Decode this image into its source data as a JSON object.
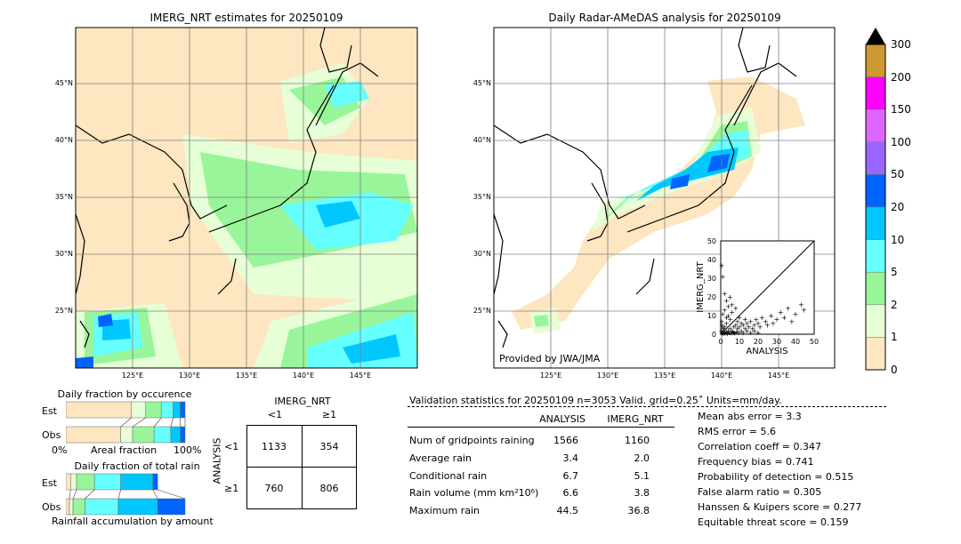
{
  "left_map": {
    "title": "IMERG_NRT estimates for 20250109",
    "lat_labels": [
      "45°N",
      "40°N",
      "35°N",
      "30°N",
      "25°N"
    ],
    "lon_labels": [
      "125°E",
      "130°E",
      "135°E",
      "140°E",
      "145°E"
    ]
  },
  "right_map": {
    "title": "Daily Radar-AMeDAS analysis for 20250109",
    "lat_labels": [
      "45°N",
      "40°N",
      "35°N",
      "30°N",
      "25°N"
    ],
    "lon_labels": [
      "125°E",
      "130°E",
      "135°E",
      "140°E",
      "145°E"
    ],
    "credit": "Provided by JWA/JMA",
    "inset": {
      "ylabel": "IMERG_NRT",
      "xlabel": "ANALYSIS",
      "ticks": [
        "0",
        "10",
        "20",
        "30",
        "40",
        "50"
      ]
    }
  },
  "colorbar": {
    "labels": [
      "300",
      "200",
      "150",
      "100",
      "50",
      "20",
      "10",
      "5",
      "2",
      "1",
      "0"
    ],
    "colors": {
      "c0": "#fde6c0",
      "c1": "#e6ffd6",
      "c2": "#99f59a",
      "c3": "#66ffff",
      "c4": "#00c8ff",
      "c5": "#0064ff",
      "c6": "#9966ff",
      "c7": "#dd66ff",
      "c8": "#ff00ff",
      "c9": "#cc9933",
      "extend": "#000000"
    }
  },
  "occurrence": {
    "title": "Daily fraction by occurence",
    "rows": [
      "Est",
      "Obs"
    ],
    "axis_left": "0%",
    "axis_mid": "Areal fraction",
    "axis_right": "100%"
  },
  "accumulation": {
    "title": "Daily fraction of total rain",
    "rows": [
      "Est",
      "Obs"
    ],
    "footer": "Rainfall accumulation by amount"
  },
  "contingency": {
    "top_label": "IMERG_NRT",
    "col_lt": "<1",
    "col_ge": "≥1",
    "side_label": "ANALYSIS",
    "row_lt": "<1",
    "row_ge": "≥1",
    "a": "1133",
    "b": "354",
    "c": "760",
    "d": "806"
  },
  "stats": {
    "header": "Validation statistics for 20250109  n=3053 Valid. grid=0.25˚ Units=mm/day.",
    "col_analysis": "ANALYSIS",
    "col_imerg": "IMERG_NRT",
    "rows": [
      {
        "label": "Num of gridpoints raining",
        "analysis": "1566",
        "imerg": "1160"
      },
      {
        "label": "Average rain",
        "analysis": "3.4",
        "imerg": "2.0"
      },
      {
        "label": "Conditional rain",
        "analysis": "6.7",
        "imerg": "5.1"
      },
      {
        "label": "Rain volume (mm km²10⁶)",
        "analysis": "6.6",
        "imerg": "3.8"
      },
      {
        "label": "Maximum rain",
        "analysis": "44.5",
        "imerg": "36.8"
      }
    ],
    "scores": [
      "Mean abs error =    3.3",
      "RMS error =    5.6",
      "Correlation coeff =  0.347",
      "Frequency bias =  0.741",
      "Probability of detection =  0.515",
      "False alarm ratio =  0.305",
      "Hanssen & Kuipers score =  0.277",
      "Equitable threat score =  0.159"
    ]
  },
  "chart_data": [
    {
      "type": "heatmap",
      "title": "IMERG_NRT estimates for 20250109",
      "x_ticks": [
        "125°E",
        "130°E",
        "135°E",
        "140°E",
        "145°E"
      ],
      "y_ticks": [
        "45°N",
        "40°N",
        "35°N",
        "30°N",
        "25°N"
      ]
    },
    {
      "type": "heatmap",
      "title": "Daily Radar-AMeDAS analysis for 20250109",
      "x_ticks": [
        "125°E",
        "130°E",
        "135°E",
        "140°E",
        "145°E"
      ],
      "y_ticks": [
        "45°N",
        "40°N",
        "35°N",
        "30°N",
        "25°N"
      ]
    },
    {
      "type": "scatter",
      "xlabel": "ANALYSIS",
      "ylabel": "IMERG_NRT",
      "xlim": [
        0,
        50
      ],
      "ylim": [
        0,
        50
      ],
      "points": [
        [
          0.5,
          0.3
        ],
        [
          1,
          2
        ],
        [
          1.5,
          0.5
        ],
        [
          2,
          1
        ],
        [
          2,
          4
        ],
        [
          3,
          1.5
        ],
        [
          3,
          6
        ],
        [
          4,
          2
        ],
        [
          4,
          10
        ],
        [
          5,
          3
        ],
        [
          5,
          8
        ],
        [
          6,
          2
        ],
        [
          6,
          12
        ],
        [
          7,
          4
        ],
        [
          7,
          1
        ],
        [
          8,
          5
        ],
        [
          8,
          14
        ],
        [
          9,
          3
        ],
        [
          9,
          7
        ],
        [
          10,
          4
        ],
        [
          10,
          9
        ],
        [
          11,
          2
        ],
        [
          11,
          6
        ],
        [
          12,
          5
        ],
        [
          13,
          3
        ],
        [
          13,
          8
        ],
        [
          14,
          6
        ],
        [
          15,
          4
        ],
        [
          16,
          7
        ],
        [
          17,
          3
        ],
        [
          18,
          5
        ],
        [
          19,
          8
        ],
        [
          20,
          6
        ],
        [
          21,
          4
        ],
        [
          22,
          9
        ],
        [
          24,
          7
        ],
        [
          25,
          5
        ],
        [
          27,
          10
        ],
        [
          28,
          6
        ],
        [
          30,
          8
        ],
        [
          32,
          12
        ],
        [
          34,
          9
        ],
        [
          36,
          14
        ],
        [
          38,
          7
        ],
        [
          40,
          11
        ],
        [
          43,
          16
        ],
        [
          44.5,
          13
        ],
        [
          1,
          31
        ],
        [
          0.5,
          36.8
        ],
        [
          2,
          22
        ],
        [
          3,
          18
        ],
        [
          4,
          15
        ],
        [
          5,
          20
        ],
        [
          6,
          16
        ],
        [
          2,
          13
        ],
        [
          1,
          11
        ],
        [
          3,
          9
        ],
        [
          0.5,
          7
        ],
        [
          0.5,
          5
        ],
        [
          1,
          4
        ],
        [
          1.5,
          3
        ],
        [
          0.3,
          2
        ],
        [
          0.8,
          1
        ],
        [
          2.5,
          0.8
        ],
        [
          3.5,
          0.5
        ],
        [
          4.5,
          1
        ],
        [
          5.5,
          0.6
        ],
        [
          6.5,
          1.2
        ],
        [
          7.5,
          0.7
        ],
        [
          8.5,
          1.5
        ],
        [
          9.5,
          0.9
        ],
        [
          12,
          1
        ],
        [
          14,
          2
        ],
        [
          16,
          1
        ],
        [
          18,
          2
        ],
        [
          20,
          1
        ]
      ]
    },
    {
      "type": "bar",
      "title": "Daily fraction by occurence",
      "categories": [
        "Est",
        "Obs"
      ],
      "series": [
        {
          "values": [
            0.55,
            0.46
          ]
        },
        {
          "values": [
            0.12,
            0.1
          ]
        },
        {
          "values": [
            0.13,
            0.18
          ]
        },
        {
          "values": [
            0.1,
            0.14
          ]
        },
        {
          "values": [
            0.06,
            0.08
          ]
        },
        {
          "values": [
            0.04,
            0.04
          ]
        }
      ]
    },
    {
      "type": "bar",
      "title": "Daily fraction of total rain",
      "categories": [
        "Est",
        "Obs"
      ],
      "series": [
        {
          "values": [
            0.04,
            0.03
          ]
        },
        {
          "values": [
            0.05,
            0.03
          ]
        },
        {
          "values": [
            0.15,
            0.1
          ]
        },
        {
          "values": [
            0.22,
            0.28
          ]
        },
        {
          "values": [
            0.27,
            0.33
          ]
        },
        {
          "values": [
            0.04,
            0.23
          ]
        }
      ]
    },
    {
      "type": "table",
      "title": "Validation statistics for 20250109  n=3053 Valid. grid=0.25˚ Units=mm/day.",
      "columns": [
        "",
        "ANALYSIS",
        "IMERG_NRT"
      ],
      "rows": [
        [
          "Num of gridpoints raining",
          1566,
          1160
        ],
        [
          "Average rain",
          3.4,
          2.0
        ],
        [
          "Conditional rain",
          6.7,
          5.1
        ],
        [
          "Rain volume (mm km²10⁶)",
          6.6,
          3.8
        ],
        [
          "Maximum rain",
          44.5,
          36.8
        ]
      ]
    }
  ]
}
